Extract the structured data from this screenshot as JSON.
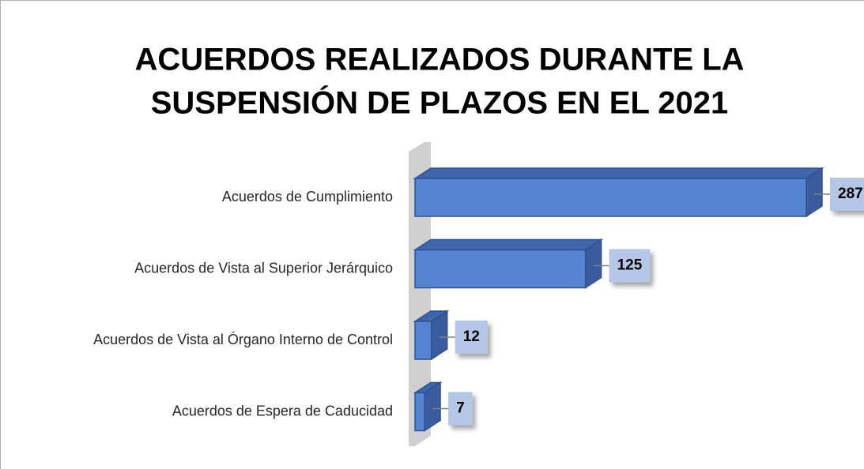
{
  "chart_data": {
    "type": "bar3d_horizontal",
    "title": [
      "ACUERDOS REALIZADOS DURANTE LA",
      "SUSPENSIÓN DE PLAZOS EN EL 2021"
    ],
    "categories": [
      "Acuerdos de Cumplimiento",
      "Acuerdos de Vista al Superior Jerárquico",
      "Acuerdos de Vista al Órgano Interno de Control",
      "Acuerdos de Espera de Caducidad"
    ],
    "values": [
      287,
      125,
      12,
      7
    ],
    "color": "#5584d3"
  }
}
